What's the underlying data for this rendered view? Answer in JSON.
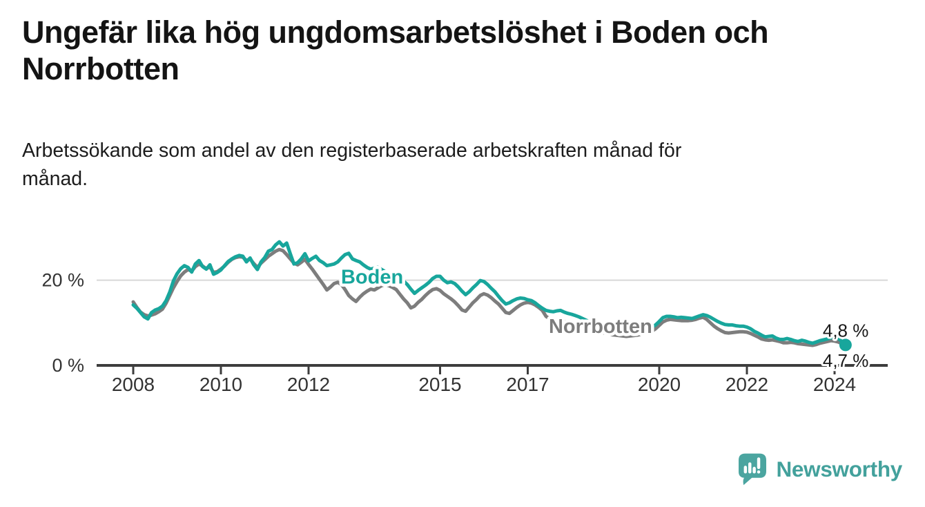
{
  "title_lines": [
    "Ungefär lika hög ungdomsarbetslöshet i Boden och",
    "Norrbotten"
  ],
  "subtitle_lines": [
    "Arbetssökande som andel av den registerbaserade arbetskraften månad för",
    "månad."
  ],
  "branding": {
    "brand": "Newsworthy",
    "icon": "newsworthy-speech-bubble-bar-chart",
    "color": "#43a19c"
  },
  "colors": {
    "boden_teal": "#18a69c",
    "norrbotten_gray": "#7d7d7d",
    "axis": "#3d3d3d",
    "gridline": "#d8d8d8",
    "text_dark": "#141414"
  },
  "chart_data": {
    "type": "line",
    "title": "Ungefär lika hög ungdomsarbetslöshet i Boden och Norrbotten",
    "subtitle": "Arbetssökande som andel av den registerbaserade arbetskraften månad för månad.",
    "unit": "%",
    "grid": "single horizontal gridline at 20 %",
    "legend_position": "inline labels on lines",
    "x_axis": {
      "range_years": [
        2007.2,
        2025.2
      ],
      "ticks": [
        {
          "value": 2008,
          "label": "2008"
        },
        {
          "value": 2010,
          "label": "2010"
        },
        {
          "value": 2012,
          "label": "2012"
        },
        {
          "value": 2015,
          "label": "2015"
        },
        {
          "value": 2017,
          "label": "2017"
        },
        {
          "value": 2020,
          "label": "2020"
        },
        {
          "value": 2022,
          "label": "2022"
        },
        {
          "value": 2024,
          "label": "2024"
        }
      ]
    },
    "y_axis": {
      "range": [
        0,
        30
      ],
      "ticks": [
        {
          "value": 0,
          "label": "0 %"
        },
        {
          "value": 20,
          "label": "20 %"
        }
      ],
      "gridlines": [
        20
      ]
    },
    "series": [
      {
        "name": "Norrbotten",
        "line_label": "Norrbotten",
        "color": "#7d7d7d",
        "end_label": "4,7 %",
        "end_value": 4.7,
        "end_label_position": "below",
        "end_dot": false,
        "label_anchor": {
          "year": 2017.48,
          "value": 7.6
        },
        "start_year": 2008,
        "interval": "monthly",
        "values": [
          14.9,
          13.6,
          12.5,
          11.9,
          11.6,
          11.8,
          12.1,
          12.6,
          13.2,
          14.6,
          16.4,
          18.2,
          19.7,
          21.0,
          21.9,
          22.5,
          22.1,
          23.2,
          23.8,
          23.3,
          22.7,
          23.1,
          21.8,
          22.0,
          22.6,
          23.3,
          24.2,
          24.9,
          25.3,
          25.5,
          25.4,
          24.6,
          25.0,
          23.9,
          23.0,
          24.0,
          24.8,
          25.6,
          26.2,
          26.8,
          27.2,
          26.9,
          26.0,
          25.0,
          24.0,
          23.6,
          24.2,
          24.9,
          23.7,
          22.6,
          21.4,
          20.2,
          19.0,
          17.7,
          18.4,
          19.2,
          19.5,
          19.0,
          17.8,
          16.4,
          15.6,
          15.0,
          16.0,
          16.8,
          17.4,
          17.9,
          17.7,
          18.2,
          18.7,
          19.0,
          18.7,
          18.3,
          17.8,
          16.7,
          15.6,
          14.7,
          13.5,
          13.9,
          14.8,
          15.5,
          16.4,
          17.2,
          17.8,
          18.0,
          17.6,
          16.8,
          16.2,
          15.6,
          14.9,
          14.0,
          13.0,
          12.7,
          13.7,
          14.7,
          15.5,
          16.4,
          16.8,
          16.5,
          15.9,
          15.1,
          14.4,
          13.4,
          12.4,
          12.2,
          12.9,
          13.6,
          14.2,
          14.6,
          14.8,
          14.6,
          14.2,
          13.6,
          12.9,
          11.5,
          10.9,
          10.8,
          10.7,
          10.5,
          10.3,
          10.1,
          10.0,
          9.7,
          9.4,
          9.1,
          8.8,
          8.5,
          8.2,
          8.0,
          7.8,
          7.6,
          7.4,
          7.2,
          7.1,
          7.0,
          6.9,
          6.8,
          6.9,
          7.0,
          7.1,
          7.3,
          7.5,
          7.7,
          8.0,
          8.6,
          9.4,
          10.2,
          10.6,
          10.8,
          10.7,
          10.6,
          10.5,
          10.5,
          10.5,
          10.6,
          10.8,
          11.1,
          11.3,
          10.8,
          10.0,
          9.2,
          8.6,
          8.1,
          7.7,
          7.6,
          7.7,
          7.8,
          7.9,
          7.9,
          7.8,
          7.5,
          7.1,
          6.7,
          6.2,
          6.0,
          5.9,
          6.0,
          5.8,
          5.6,
          5.3,
          5.3,
          5.4,
          5.3,
          5.1,
          5.0,
          4.9,
          4.8,
          4.7,
          4.9,
          5.2,
          5.4,
          5.6,
          5.8,
          5.7,
          5.5,
          5.1,
          4.7
        ]
      },
      {
        "name": "Boden",
        "line_label": "Boden",
        "color": "#18a69c",
        "end_label": "4,8 %",
        "end_value": 4.8,
        "end_label_position": "above",
        "end_dot": true,
        "label_anchor": {
          "year": 2012.74,
          "value": 19.2
        },
        "start_year": 2008,
        "interval": "monthly",
        "values": [
          14.2,
          13.4,
          12.4,
          11.4,
          10.9,
          12.4,
          13.0,
          13.3,
          13.9,
          15.2,
          17.2,
          19.8,
          21.5,
          22.7,
          23.4,
          23.0,
          21.9,
          23.8,
          24.6,
          23.2,
          22.6,
          23.6,
          21.4,
          21.8,
          22.4,
          23.4,
          24.4,
          25.0,
          25.5,
          25.8,
          25.6,
          24.3,
          25.2,
          23.6,
          22.5,
          24.3,
          25.3,
          26.8,
          27.2,
          28.3,
          29.0,
          28.0,
          28.7,
          26.2,
          23.8,
          24.1,
          25.0,
          26.2,
          24.5,
          25.1,
          25.6,
          24.6,
          24.1,
          23.4,
          23.6,
          23.8,
          24.3,
          25.2,
          26.0,
          26.3,
          25.0,
          24.6,
          24.3,
          23.6,
          23.0,
          22.6,
          22.8,
          23.0,
          22.5,
          22.0,
          21.6,
          21.2,
          20.9,
          20.4,
          19.8,
          19.0,
          17.9,
          16.9,
          17.6,
          18.2,
          18.8,
          19.5,
          20.4,
          20.9,
          20.9,
          20.0,
          19.4,
          19.6,
          19.2,
          18.4,
          17.4,
          16.6,
          17.3,
          18.2,
          19.0,
          19.9,
          19.7,
          19.0,
          18.1,
          17.3,
          16.2,
          15.2,
          14.4,
          14.7,
          15.2,
          15.6,
          15.8,
          15.7,
          15.4,
          15.2,
          14.7,
          14.0,
          13.4,
          12.9,
          12.7,
          12.6,
          12.8,
          12.9,
          12.5,
          12.2,
          12.0,
          11.7,
          11.4,
          11.0,
          10.6,
          10.2,
          9.8,
          9.5,
          9.2,
          9.0,
          8.8,
          8.6,
          8.3,
          8.1,
          7.9,
          7.8,
          7.8,
          7.9,
          8.0,
          8.2,
          8.4,
          8.7,
          9.0,
          9.5,
          10.3,
          11.2,
          11.5,
          11.5,
          11.4,
          11.2,
          11.3,
          11.2,
          11.1,
          11.0,
          11.3,
          11.6,
          11.9,
          11.7,
          11.3,
          10.8,
          10.3,
          9.9,
          9.6,
          9.5,
          9.5,
          9.3,
          9.2,
          9.2,
          9.0,
          8.6,
          8.0,
          7.6,
          7.1,
          6.7,
          6.8,
          6.9,
          6.4,
          6.1,
          6.1,
          6.3,
          6.1,
          5.8,
          5.6,
          5.9,
          5.7,
          5.4,
          5.2,
          5.5,
          5.8,
          6.0,
          6.2,
          6.5,
          6.6,
          6.3,
          5.6,
          4.8
        ]
      }
    ]
  }
}
